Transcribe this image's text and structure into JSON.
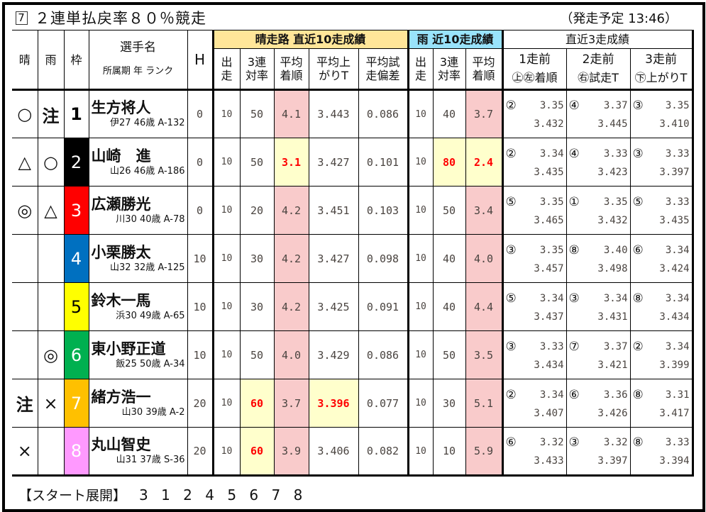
{
  "race": {
    "badge": "7",
    "title": "２連単払戻率８０％競走",
    "start_time": "（発走予定 13:46）"
  },
  "header": {
    "sunny": "晴",
    "rain": "雨",
    "frame": "枠",
    "name": "選手名",
    "name_sub": "所属期 年 ランク",
    "handicap": "H",
    "sunny_group": "晴走路 直近10走成績",
    "rain_group": "雨 近10走成績",
    "recent_group": "直近3走成績",
    "sunny_cols": [
      "出\n走",
      "3連\n対率",
      "平均\n着順",
      "平均上\nがりT",
      "平均試\n走偏差"
    ],
    "rain_cols": [
      "出\n走",
      "3連\n対率",
      "平均\n着順"
    ],
    "recent_cols": [
      "1走前",
      "2走前",
      "3走前"
    ],
    "recent_sub": [
      "㊤㊧着順",
      "㊨試走T",
      "㊦上がりT"
    ]
  },
  "colors": {
    "frame_bg": [
      "#ffffff",
      "#000000",
      "#ff0000",
      "#0070c0",
      "#ffff00",
      "#00b050",
      "#ffc000",
      "#ff99ff"
    ],
    "frame_fg": [
      "#000000",
      "#ffffff",
      "#ffffff",
      "#ffffff",
      "#000000",
      "#ffffff",
      "#ffffff",
      "#ffffff"
    ],
    "pink": "#f9cbcb",
    "yellow": "#ffffcc",
    "highlight_text": "#ff0000"
  },
  "rows": [
    {
      "sun": "○",
      "rain": "注",
      "frame": "1",
      "name": "生方将人",
      "info": "伊27 46歳 A-132",
      "h": "0",
      "s_runs": "10",
      "s_top3": "50",
      "s_avg": "4.1",
      "s_up": "3.443",
      "s_dev": "0.086",
      "r_runs": "10",
      "r_top3": "40",
      "r_avg": "3.7",
      "hl": [],
      "recent": [
        {
          "rank": "②",
          "trial": "3.35",
          "up": "3.432"
        },
        {
          "rank": "④",
          "trial": "3.37",
          "up": "3.445"
        },
        {
          "rank": "③",
          "trial": "3.35",
          "up": "3.410"
        }
      ]
    },
    {
      "sun": "△",
      "rain": "○",
      "frame": "2",
      "name": "山崎　進",
      "info": "山26 46歳 A-186",
      "h": "0",
      "s_runs": "10",
      "s_top3": "50",
      "s_avg": "3.1",
      "s_up": "3.427",
      "s_dev": "0.101",
      "r_runs": "10",
      "r_top3": "80",
      "r_avg": "2.4",
      "hl": [
        "s_avg",
        "r_top3",
        "r_avg"
      ],
      "recent": [
        {
          "rank": "②",
          "trial": "3.34",
          "up": "3.435"
        },
        {
          "rank": "④",
          "trial": "3.33",
          "up": "3.423"
        },
        {
          "rank": "③",
          "trial": "3.33",
          "up": "3.397"
        }
      ]
    },
    {
      "sun": "◎",
      "rain": "△",
      "frame": "3",
      "name": "広瀬勝光",
      "info": "川30 40歳 A-78",
      "h": "0",
      "s_runs": "10",
      "s_top3": "20",
      "s_avg": "4.2",
      "s_up": "3.451",
      "s_dev": "0.103",
      "r_runs": "10",
      "r_top3": "50",
      "r_avg": "3.4",
      "hl": [],
      "recent": [
        {
          "rank": "⑤",
          "trial": "3.35",
          "up": "3.465"
        },
        {
          "rank": "①",
          "trial": "3.35",
          "up": "3.432"
        },
        {
          "rank": "⑤",
          "trial": "3.33",
          "up": "3.435"
        }
      ]
    },
    {
      "sun": "",
      "rain": "",
      "frame": "4",
      "name": "小栗勝太",
      "info": "山32 32歳 A-125",
      "h": "10",
      "s_runs": "10",
      "s_top3": "30",
      "s_avg": "4.2",
      "s_up": "3.427",
      "s_dev": "0.098",
      "r_runs": "10",
      "r_top3": "40",
      "r_avg": "4.0",
      "hl": [],
      "recent": [
        {
          "rank": "③",
          "trial": "3.35",
          "up": "3.457"
        },
        {
          "rank": "⑧",
          "trial": "3.40",
          "up": "3.498"
        },
        {
          "rank": "⑥",
          "trial": "3.34",
          "up": "3.424"
        }
      ]
    },
    {
      "sun": "",
      "rain": "",
      "frame": "5",
      "name": "鈴木一馬",
      "info": "浜30 49歳 A-65",
      "h": "10",
      "s_runs": "10",
      "s_top3": "30",
      "s_avg": "4.2",
      "s_up": "3.425",
      "s_dev": "0.091",
      "r_runs": "10",
      "r_top3": "40",
      "r_avg": "4.4",
      "hl": [],
      "recent": [
        {
          "rank": "⑤",
          "trial": "3.34",
          "up": "3.437"
        },
        {
          "rank": "③",
          "trial": "3.34",
          "up": "3.431"
        },
        {
          "rank": "⑧",
          "trial": "3.34",
          "up": "3.434"
        }
      ]
    },
    {
      "sun": "",
      "rain": "◎",
      "frame": "6",
      "name": "東小野正道",
      "info": "飯25 50歳 A-34",
      "h": "10",
      "s_runs": "10",
      "s_top3": "50",
      "s_avg": "4.0",
      "s_up": "3.429",
      "s_dev": "0.086",
      "r_runs": "10",
      "r_top3": "50",
      "r_avg": "3.5",
      "hl": [],
      "recent": [
        {
          "rank": "③",
          "trial": "3.33",
          "up": "3.434"
        },
        {
          "rank": "⑦",
          "trial": "3.37",
          "up": "3.421"
        },
        {
          "rank": "②",
          "trial": "3.34",
          "up": "3.399"
        }
      ]
    },
    {
      "sun": "注",
      "rain": "×",
      "frame": "7",
      "name": "緒方浩一",
      "info": "山30 39歳 A-2",
      "h": "20",
      "s_runs": "10",
      "s_top3": "60",
      "s_avg": "3.7",
      "s_up": "3.396",
      "s_dev": "0.077",
      "r_runs": "10",
      "r_top3": "30",
      "r_avg": "5.1",
      "hl": [
        "s_top3",
        "s_up"
      ],
      "recent": [
        {
          "rank": "②",
          "trial": "3.34",
          "up": "3.407"
        },
        {
          "rank": "⑥",
          "trial": "3.36",
          "up": "3.426"
        },
        {
          "rank": "⑧",
          "trial": "3.31",
          "up": "3.417"
        }
      ]
    },
    {
      "sun": "×",
      "rain": "",
      "frame": "8",
      "name": "丸山智史",
      "info": "山31 37歳 S-36",
      "h": "20",
      "s_runs": "10",
      "s_top3": "60",
      "s_avg": "3.9",
      "s_up": "3.406",
      "s_dev": "0.082",
      "r_runs": "10",
      "r_top3": "10",
      "r_avg": "5.9",
      "hl": [
        "s_top3"
      ],
      "recent": [
        {
          "rank": "⑥",
          "trial": "3.32",
          "up": "3.433"
        },
        {
          "rank": "③",
          "trial": "3.32",
          "up": "3.397"
        },
        {
          "rank": "⑧",
          "trial": "3.33",
          "up": "3.394"
        }
      ]
    }
  ],
  "footer": {
    "label": "【スタート展開】",
    "sequence": "3 1 2 4 5 6 7 8"
  }
}
